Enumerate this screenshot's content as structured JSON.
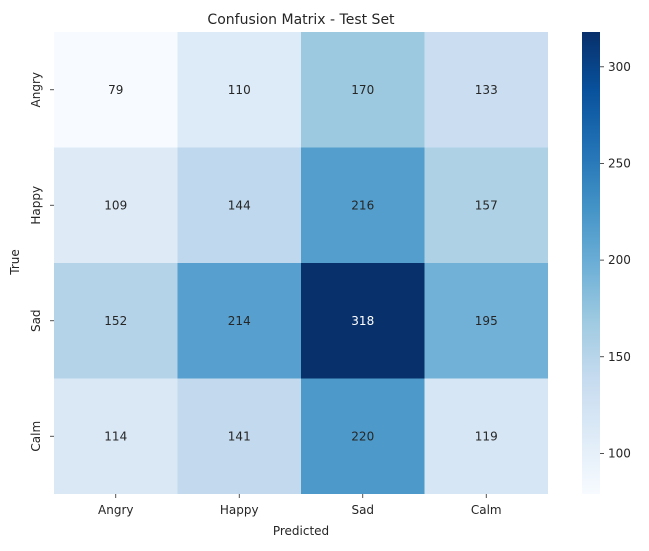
{
  "chart_data": {
    "type": "heatmap",
    "title": "Confusion Matrix - Test Set",
    "xlabel": "Predicted",
    "ylabel": "True",
    "x_categories": [
      "Angry",
      "Happy",
      "Sad",
      "Calm"
    ],
    "y_categories": [
      "Angry",
      "Happy",
      "Sad",
      "Calm"
    ],
    "values": [
      [
        79,
        110,
        170,
        133
      ],
      [
        109,
        144,
        216,
        157
      ],
      [
        152,
        214,
        318,
        195
      ],
      [
        114,
        141,
        220,
        119
      ]
    ],
    "colormap": "Blues",
    "color_range": [
      79,
      318
    ],
    "colorbar_ticks": [
      100,
      150,
      200,
      250,
      300
    ],
    "annotations": true,
    "grid": false
  }
}
